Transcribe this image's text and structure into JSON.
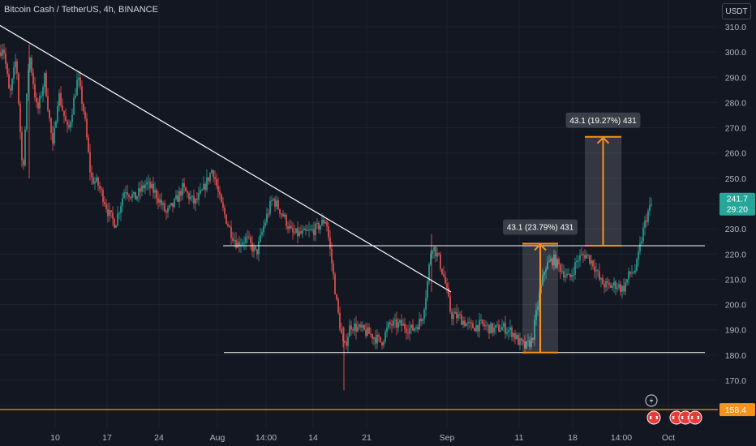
{
  "header": {
    "title": "Bitcoin Cash / TetherUS, 4h, BINANCE",
    "currency_button": "USDT"
  },
  "colors": {
    "background": "#131722",
    "up": "#26a69a",
    "down": "#ef5350",
    "grid": "#1e222d",
    "trendline": "#ffffff",
    "measure": "#f7931a",
    "last_price_tag": "#26a69a",
    "low_price_tag": "#f7931a"
  },
  "chart_data": {
    "type": "candlestick",
    "ylim": [
      163,
      314
    ],
    "y_ticks": [
      "310.0",
      "300.0",
      "290.0",
      "280.0",
      "270.0",
      "260.0",
      "250.0",
      "240.0",
      "230.0",
      "220.0",
      "210.0",
      "200.0",
      "190.0",
      "180.0",
      "170.0",
      "160.0"
    ],
    "x_ticks": [
      "10",
      "17",
      "24",
      "Aug",
      "14:00",
      "14",
      "21",
      "Sep",
      "11",
      "18",
      "14:00",
      "Oct"
    ],
    "candle_path": [
      [
        0,
        300
      ],
      [
        4,
        303
      ],
      [
        12,
        282
      ],
      [
        20,
        298
      ],
      [
        28,
        251
      ],
      [
        36,
        300
      ],
      [
        46,
        276
      ],
      [
        55,
        290
      ],
      [
        65,
        262
      ],
      [
        72,
        284
      ],
      [
        84,
        268
      ],
      [
        96,
        290
      ],
      [
        104,
        275
      ],
      [
        112,
        250
      ],
      [
        120,
        248
      ],
      [
        128,
        242
      ],
      [
        134,
        236
      ],
      [
        142,
        232
      ],
      [
        154,
        246
      ],
      [
        166,
        242
      ],
      [
        180,
        248
      ],
      [
        192,
        244
      ],
      [
        205,
        236
      ],
      [
        215,
        240
      ],
      [
        225,
        246
      ],
      [
        240,
        240
      ],
      [
        250,
        245
      ],
      [
        262,
        254
      ],
      [
        272,
        240
      ],
      [
        283,
        230
      ],
      [
        292,
        224
      ],
      [
        304,
        226
      ],
      [
        316,
        220
      ],
      [
        326,
        232
      ],
      [
        336,
        242
      ],
      [
        348,
        236
      ],
      [
        360,
        228
      ],
      [
        375,
        228
      ],
      [
        390,
        230
      ],
      [
        402,
        234
      ],
      [
        410,
        214
      ],
      [
        416,
        198
      ],
      [
        424,
        182
      ],
      [
        432,
        192
      ],
      [
        445,
        190
      ],
      [
        458,
        188
      ],
      [
        470,
        185
      ],
      [
        480,
        192
      ],
      [
        494,
        192
      ],
      [
        508,
        190
      ],
      [
        520,
        194
      ],
      [
        526,
        206
      ],
      [
        532,
        224
      ],
      [
        540,
        219
      ],
      [
        548,
        210
      ],
      [
        556,
        196
      ],
      [
        566,
        195
      ],
      [
        580,
        191
      ],
      [
        594,
        192
      ],
      [
        608,
        190
      ],
      [
        620,
        191
      ],
      [
        632,
        189
      ],
      [
        640,
        185
      ],
      [
        648,
        183
      ],
      [
        656,
        186
      ],
      [
        664,
        202
      ],
      [
        672,
        215
      ],
      [
        682,
        218
      ],
      [
        692,
        214
      ],
      [
        702,
        210
      ],
      [
        712,
        218
      ],
      [
        722,
        220
      ],
      [
        732,
        216
      ],
      [
        740,
        209
      ],
      [
        750,
        207
      ],
      [
        760,
        208
      ],
      [
        768,
        206
      ],
      [
        776,
        212
      ],
      [
        784,
        214
      ],
      [
        792,
        228
      ],
      [
        798,
        236
      ],
      [
        804,
        240
      ]
    ],
    "last_price": {
      "value": "241.7",
      "countdown": "29:20"
    },
    "low_price": {
      "value": "158.4"
    },
    "trendline": {
      "from": {
        "t": 0,
        "price": 310.5
      },
      "to": {
        "t": 556,
        "price": 205
      }
    },
    "horizontal_levels": [
      {
        "price": 223.3,
        "t_start": 275,
        "t_end": 869
      },
      {
        "price": 181.0,
        "t_start": 276,
        "t_end": 869
      }
    ],
    "measurements": [
      {
        "label": "43.1 (23.79%) 431",
        "t_start": 644,
        "t_end": 688,
        "from_price": 181.0,
        "to_price": 224.1
      },
      {
        "label": "43.1 (19.27%) 431",
        "t_start": 721,
        "t_end": 766,
        "from_price": 223.3,
        "to_price": 266.4
      }
    ],
    "markers": [
      "lightning-icon",
      "earnings-icon",
      "earnings-icon",
      "earnings-icon",
      "earnings-icon"
    ]
  }
}
